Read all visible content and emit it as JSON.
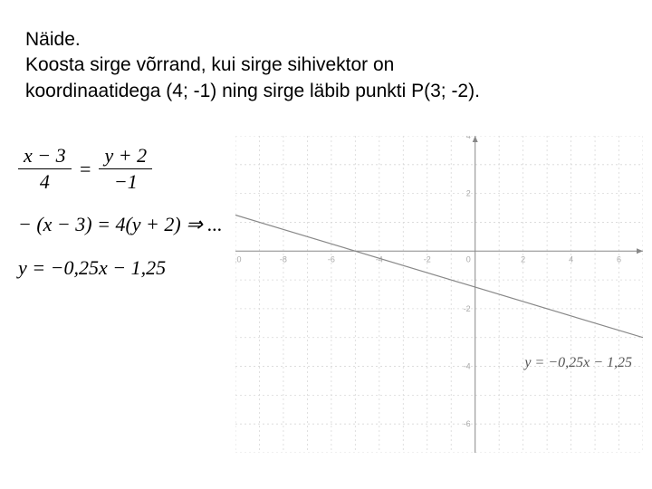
{
  "text": {
    "title": "Näide.",
    "line1": "Koosta sirge võrrand, kui sirge sihivektor on",
    "line2": "koordinaatidega (4; -1) ning sirge läbib punkti P(3; -2)."
  },
  "equations": {
    "frac_left_num": "x − 3",
    "frac_left_den": "4",
    "frac_right_num": "y + 2",
    "frac_right_den": "−1",
    "eq_sign": "=",
    "eq2": "− (x − 3) = 4(y + 2) ⇒ ...",
    "eq3": "y = −0,25x − 1,25"
  },
  "chart": {
    "type": "line",
    "xlim": [
      -10,
      7
    ],
    "ylim": [
      -7,
      4
    ],
    "xtick_step": 1,
    "ytick_step": 1,
    "xtick_labels_show": [
      -10,
      -8,
      -6,
      -4,
      -2,
      2,
      4,
      6
    ],
    "ytick_labels_show": [
      -6,
      -4,
      -2,
      2,
      4
    ],
    "origin_label": "0",
    "background_color": "#ffffff",
    "grid_color": "#d8d8d8",
    "grid_dash": "2,3",
    "axis_color": "#888888",
    "tick_font_size": 9,
    "tick_color": "#aaaaaa",
    "line": {
      "slope": -0.25,
      "intercept": -1.25,
      "color": "#888888",
      "width": 1.2
    },
    "formula_label": "y = −0,25x − 1,25",
    "formula_color": "#555555",
    "formula_fontsize": 16
  }
}
